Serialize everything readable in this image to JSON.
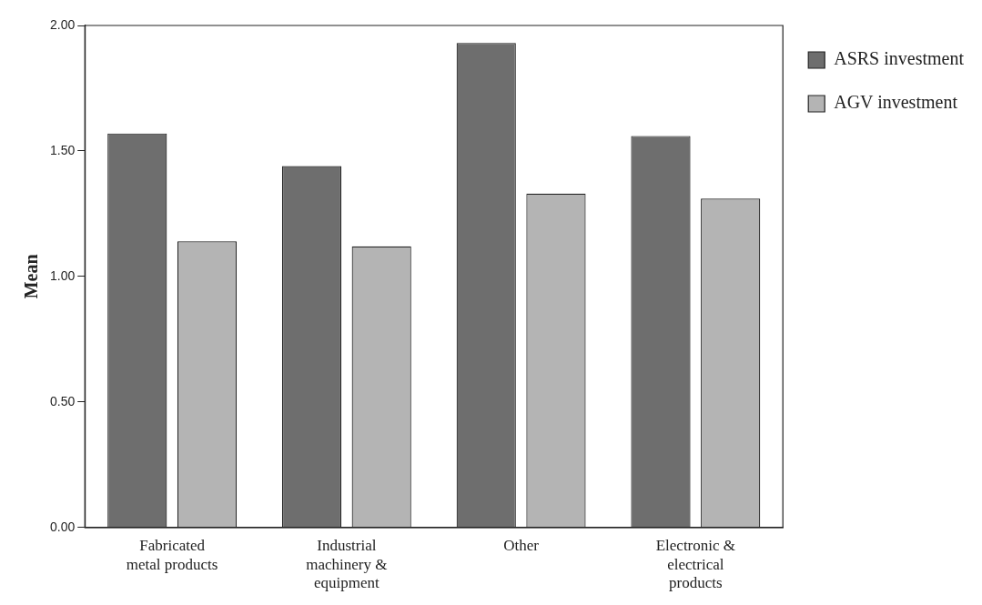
{
  "chart_data": {
    "type": "bar",
    "ylabel": "Mean",
    "categories": [
      "Fabricated metal products",
      "Industrial machinery & equipment",
      "Other",
      "Electronic & electrical products"
    ],
    "series": [
      {
        "name": "ASRS investment",
        "color": "#6e6e6e",
        "values": [
          1.57,
          1.44,
          1.93,
          1.56
        ]
      },
      {
        "name": "AGV investment",
        "color": "#b4b4b4",
        "values": [
          1.14,
          1.12,
          1.33,
          1.31
        ]
      }
    ],
    "ylim": [
      0,
      2
    ],
    "yticks": [
      {
        "value": 0,
        "label": "0.00"
      },
      {
        "value": 0.5,
        "label": "0.50"
      },
      {
        "value": 1,
        "label": "1.00"
      },
      {
        "value": 1.5,
        "label": "1.50"
      },
      {
        "value": 2,
        "label": "2.00"
      }
    ],
    "grid": false,
    "legend": "right"
  }
}
